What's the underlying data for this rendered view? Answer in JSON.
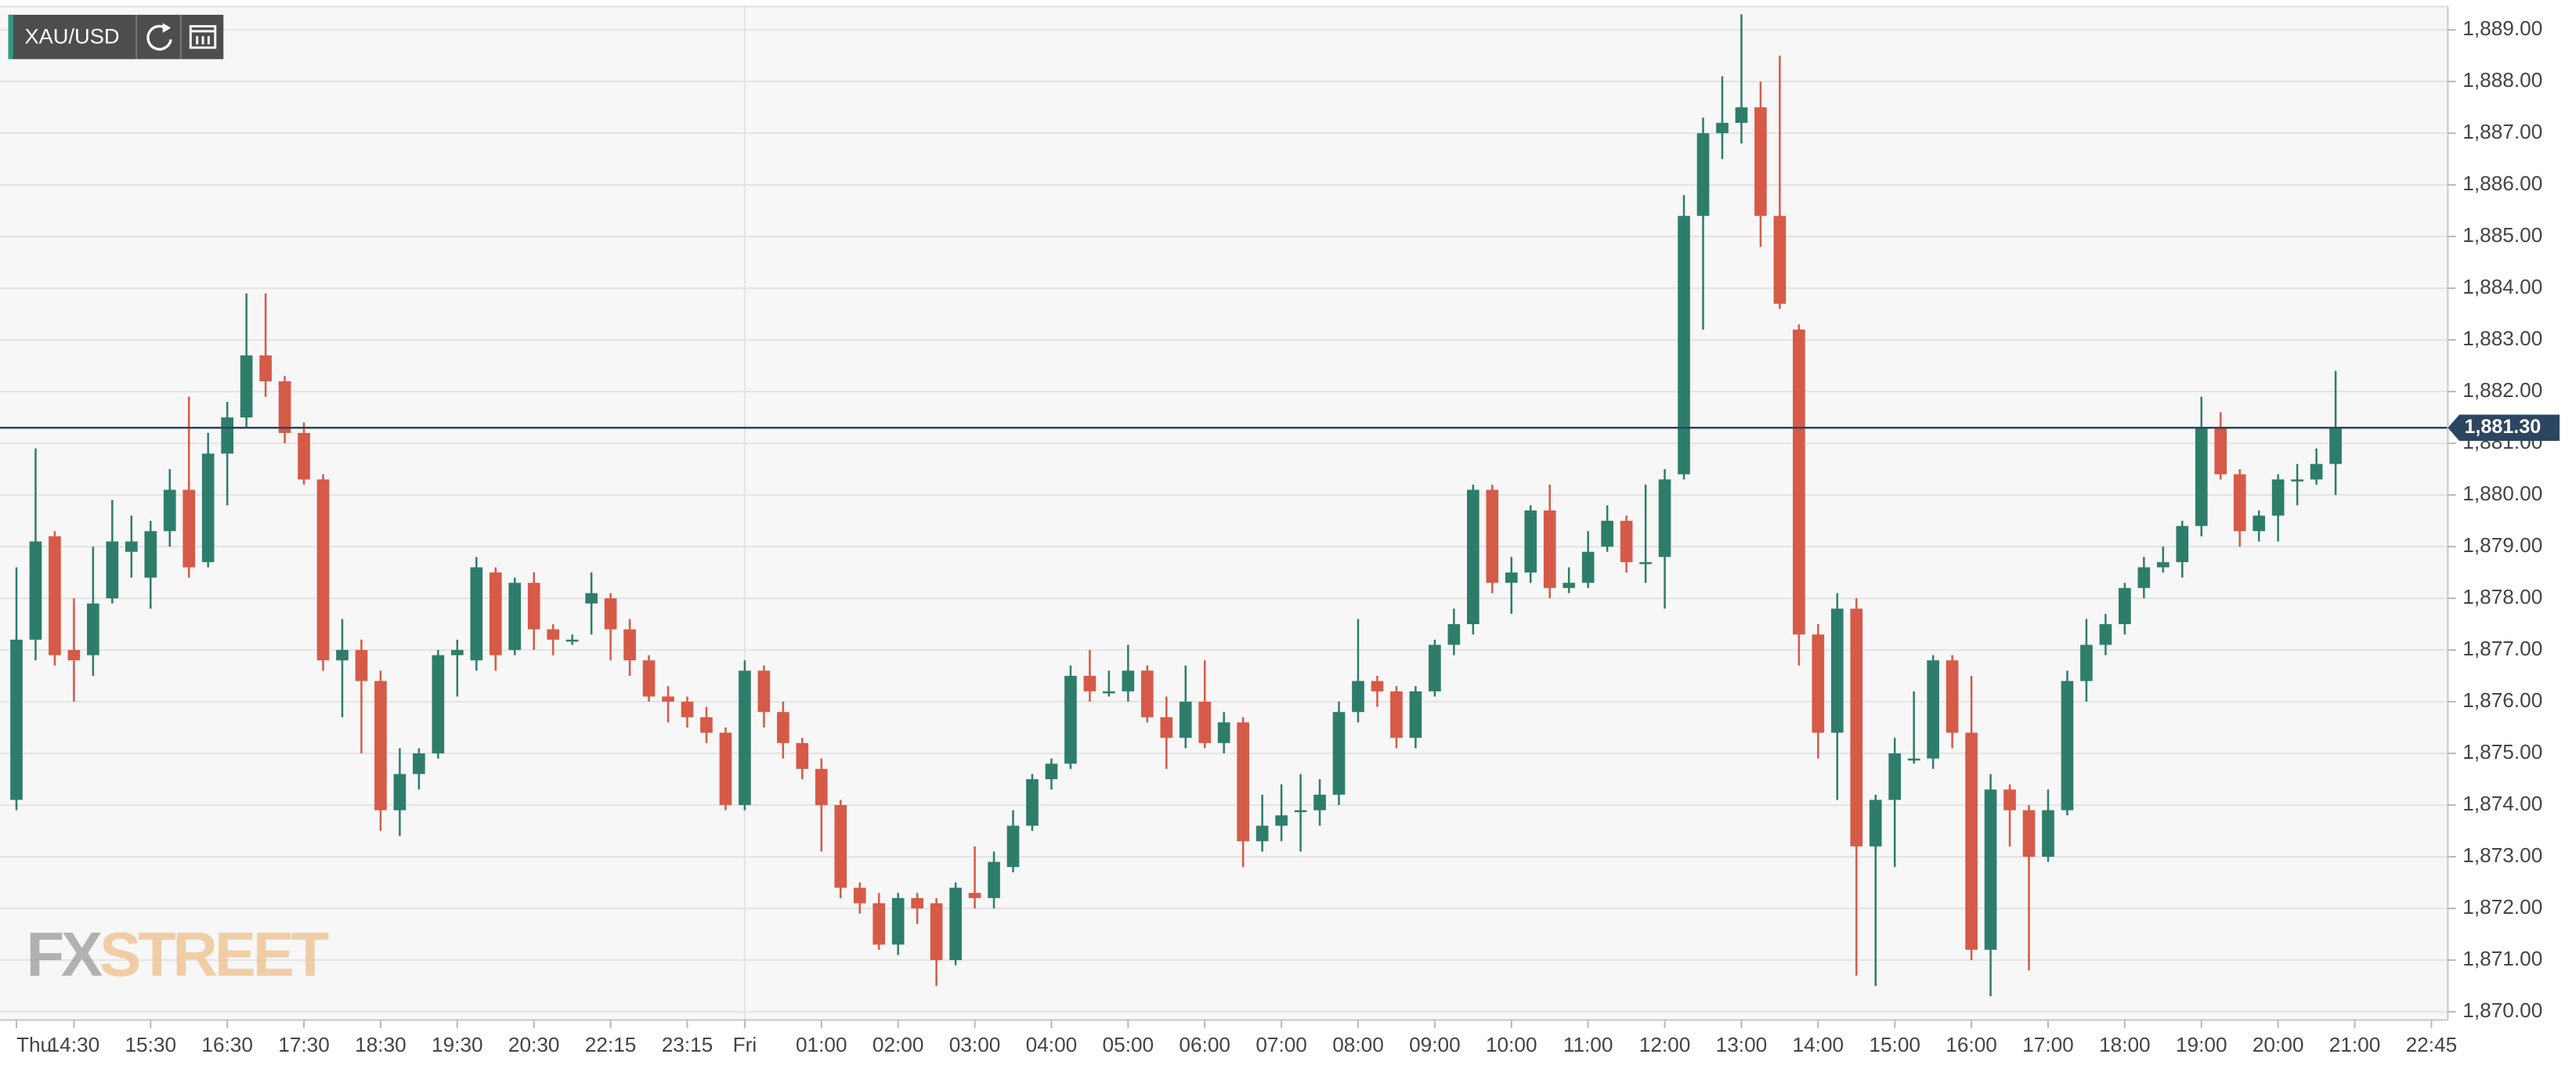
{
  "symbol": "XAU/USD",
  "logo": [
    "FX",
    "STREET"
  ],
  "chart_data": {
    "type": "candlestick",
    "up_color": "#2e7d6b",
    "down_color": "#d65a48",
    "grid": true,
    "price_line_color": "#2c4560",
    "last_price": {
      "value": 1881.3,
      "label": "1,881.30"
    },
    "ylim": [
      1869.84,
      1889.45
    ],
    "yticks": [
      {
        "value": 1870,
        "label": "1,870.00"
      },
      {
        "value": 1871,
        "label": "1,871.00"
      },
      {
        "value": 1872,
        "label": "1,872.00"
      },
      {
        "value": 1873,
        "label": "1,873.00"
      },
      {
        "value": 1874,
        "label": "1,874.00"
      },
      {
        "value": 1875,
        "label": "1,875.00"
      },
      {
        "value": 1876,
        "label": "1,876.00"
      },
      {
        "value": 1877,
        "label": "1,877.00"
      },
      {
        "value": 1878,
        "label": "1,878.00"
      },
      {
        "value": 1879,
        "label": "1,879.00"
      },
      {
        "value": 1880,
        "label": "1,880.00"
      },
      {
        "value": 1881,
        "label": "1,881.00"
      },
      {
        "value": 1882,
        "label": "1,882.00"
      },
      {
        "value": 1883,
        "label": "1,883.00"
      },
      {
        "value": 1884,
        "label": "1,884.00"
      },
      {
        "value": 1885,
        "label": "1,885.00"
      },
      {
        "value": 1886,
        "label": "1,886.00"
      },
      {
        "value": 1887,
        "label": "1,887.00"
      },
      {
        "value": 1888,
        "label": "1,888.00"
      },
      {
        "value": 1889,
        "label": "1,889.00"
      }
    ],
    "categories": [
      "Thu",
      null,
      null,
      "14:30",
      null,
      null,
      null,
      "15:30",
      null,
      null,
      null,
      "16:30",
      null,
      null,
      null,
      "17:30",
      null,
      null,
      null,
      "18:30",
      null,
      null,
      null,
      "19:30",
      null,
      null,
      null,
      "20:30",
      null,
      null,
      null,
      "22:15",
      null,
      null,
      null,
      "23:15",
      null,
      null,
      "Fri",
      null,
      null,
      null,
      "01:00",
      null,
      null,
      null,
      "02:00",
      null,
      null,
      null,
      "03:00",
      null,
      null,
      null,
      "04:00",
      null,
      null,
      null,
      "05:00",
      null,
      null,
      null,
      "06:00",
      null,
      null,
      null,
      "07:00",
      null,
      null,
      null,
      "08:00",
      null,
      null,
      null,
      "09:00",
      null,
      null,
      null,
      "10:00",
      null,
      null,
      null,
      "11:00",
      null,
      null,
      null,
      "12:00",
      null,
      null,
      null,
      "13:00",
      null,
      null,
      null,
      "14:00",
      null,
      null,
      null,
      "15:00",
      null,
      null,
      null,
      "16:00",
      null,
      null,
      null,
      "17:00",
      null,
      null,
      null,
      "18:00",
      null,
      null,
      null,
      "19:00",
      null,
      null,
      null,
      "20:00",
      null,
      null,
      null,
      "21:00",
      null,
      null,
      null,
      "22:45"
    ],
    "open": [
      1874.1,
      1877.2,
      1879.2,
      1877.0,
      1876.9,
      1878.0,
      1878.9,
      1878.4,
      1879.3,
      1880.1,
      1878.7,
      1880.8,
      1881.5,
      1882.7,
      1882.2,
      1881.2,
      1880.3,
      1876.8,
      1877.0,
      1876.4,
      1873.9,
      1874.6,
      1875.0,
      1876.9,
      1876.8,
      1878.5,
      1877.0,
      1878.3,
      1877.4,
      1877.2,
      1877.9,
      1878.0,
      1877.4,
      1876.8,
      1876.1,
      1876.0,
      1875.7,
      1875.4,
      1874.0,
      1876.6,
      1875.8,
      1875.2,
      1874.7,
      1874.0,
      1872.4,
      1872.1,
      1871.3,
      1872.2,
      1872.1,
      1871.0,
      1872.3,
      1872.2,
      1872.8,
      1873.6,
      1874.5,
      1874.8,
      1876.5,
      1876.2,
      1876.2,
      1876.6,
      1875.7,
      1875.3,
      1876.0,
      1875.2,
      1875.6,
      1873.3,
      1873.6,
      1873.9,
      1873.9,
      1874.2,
      1875.8,
      1876.4,
      1876.2,
      1875.3,
      1876.2,
      1877.1,
      1877.5,
      1880.1,
      1878.3,
      1878.5,
      1879.7,
      1878.2,
      1878.3,
      1879.0,
      1879.5,
      1878.7,
      1878.8,
      1880.4,
      1885.4,
      1887.0,
      1887.2,
      1887.5,
      1885.4,
      1883.2,
      1877.3,
      1875.4,
      1877.8,
      1873.2,
      1874.1,
      1874.9,
      1874.9,
      1876.8,
      1875.4,
      1871.2,
      1874.3,
      1873.9,
      1873.0,
      1873.9,
      1876.4,
      1877.1,
      1877.5,
      1878.2,
      1878.6,
      1878.7,
      1879.4,
      1881.3,
      1880.4,
      1879.3,
      1879.6,
      1880.3,
      1880.3,
      1880.6,
      null,
      null,
      null,
      null,
      null
    ],
    "high": [
      1878.6,
      1880.9,
      1879.3,
      1878.0,
      1879.0,
      1879.9,
      1879.6,
      1879.5,
      1880.5,
      1881.9,
      1881.2,
      1881.8,
      1883.9,
      1883.9,
      1882.3,
      1881.4,
      1880.4,
      1877.6,
      1877.2,
      1876.6,
      1875.1,
      1875.1,
      1877.0,
      1877.2,
      1878.8,
      1878.6,
      1878.4,
      1878.5,
      1877.5,
      1877.3,
      1878.5,
      1878.1,
      1877.6,
      1876.9,
      1876.3,
      1876.1,
      1875.9,
      1875.5,
      1876.8,
      1876.7,
      1876.0,
      1875.3,
      1874.9,
      1874.1,
      1872.5,
      1872.3,
      1872.3,
      1872.3,
      1872.2,
      1872.5,
      1873.2,
      1873.1,
      1873.9,
      1874.6,
      1874.9,
      1876.7,
      1877.0,
      1876.6,
      1877.1,
      1876.7,
      1876.1,
      1876.7,
      1876.8,
      1875.8,
      1875.7,
      1874.2,
      1874.4,
      1874.6,
      1874.5,
      1876.0,
      1877.6,
      1876.5,
      1876.3,
      1876.3,
      1877.2,
      1877.8,
      1880.2,
      1880.2,
      1878.8,
      1879.8,
      1880.2,
      1878.6,
      1879.3,
      1879.8,
      1879.6,
      1880.2,
      1880.5,
      1885.8,
      1887.3,
      1888.1,
      1889.3,
      1888.0,
      1888.5,
      1883.3,
      1877.5,
      1878.1,
      1878.0,
      1874.2,
      1875.3,
      1876.2,
      1876.9,
      1876.9,
      1876.5,
      1874.6,
      1874.4,
      1874.0,
      1874.3,
      1876.6,
      1877.6,
      1877.7,
      1878.3,
      1878.8,
      1879.0,
      1879.5,
      1881.9,
      1881.6,
      1880.5,
      1879.7,
      1880.4,
      1880.6,
      1880.9,
      1882.4,
      null,
      null,
      null,
      null,
      null
    ],
    "low": [
      1873.9,
      1876.8,
      1876.7,
      1876.0,
      1876.5,
      1877.9,
      1878.4,
      1877.8,
      1879.0,
      1878.4,
      1878.6,
      1879.8,
      1881.3,
      1881.9,
      1881.0,
      1880.2,
      1876.6,
      1875.7,
      1875.0,
      1873.5,
      1873.4,
      1874.3,
      1874.9,
      1876.1,
      1876.6,
      1876.6,
      1876.9,
      1877.0,
      1876.9,
      1877.1,
      1877.3,
      1876.8,
      1876.5,
      1876.0,
      1875.6,
      1875.5,
      1875.2,
      1873.9,
      1873.9,
      1875.5,
      1874.9,
      1874.5,
      1873.1,
      1872.2,
      1871.9,
      1871.2,
      1871.1,
      1871.7,
      1870.5,
      1870.9,
      1872.0,
      1872.0,
      1872.7,
      1873.5,
      1874.3,
      1874.7,
      1876.0,
      1876.1,
      1876.0,
      1875.6,
      1874.7,
      1875.1,
      1875.1,
      1875.0,
      1872.8,
      1873.1,
      1873.3,
      1873.1,
      1873.6,
      1874.0,
      1875.6,
      1875.9,
      1875.1,
      1875.1,
      1876.1,
      1876.9,
      1877.3,
      1878.1,
      1877.7,
      1878.3,
      1878.0,
      1878.1,
      1878.2,
      1878.9,
      1878.5,
      1878.3,
      1877.8,
      1880.3,
      1883.2,
      1886.5,
      1886.8,
      1884.8,
      1883.6,
      1876.7,
      1874.9,
      1874.1,
      1870.7,
      1870.5,
      1872.8,
      1874.8,
      1874.7,
      1875.1,
      1871.0,
      1870.3,
      1873.2,
      1870.8,
      1872.9,
      1873.8,
      1876.0,
      1876.9,
      1877.3,
      1878.0,
      1878.5,
      1878.4,
      1879.2,
      1880.3,
      1879.0,
      1879.1,
      1879.1,
      1879.8,
      1880.2,
      1880.0,
      null,
      null,
      null,
      null,
      null
    ],
    "close": [
      1877.2,
      1879.1,
      1876.9,
      1876.8,
      1877.9,
      1879.1,
      1879.1,
      1879.3,
      1880.1,
      1878.6,
      1880.8,
      1881.5,
      1882.7,
      1882.2,
      1881.2,
      1880.3,
      1876.8,
      1877.0,
      1876.4,
      1873.9,
      1874.6,
      1875.0,
      1876.9,
      1877.0,
      1878.6,
      1876.9,
      1878.3,
      1877.4,
      1877.2,
      1877.2,
      1878.1,
      1877.4,
      1876.8,
      1876.1,
      1876.0,
      1875.7,
      1875.4,
      1874.0,
      1876.6,
      1875.8,
      1875.2,
      1874.7,
      1874.0,
      1872.4,
      1872.1,
      1871.3,
      1872.2,
      1872.0,
      1871.0,
      1872.4,
      1872.2,
      1872.9,
      1873.6,
      1874.5,
      1874.8,
      1876.5,
      1876.2,
      1876.2,
      1876.6,
      1875.7,
      1875.3,
      1876.0,
      1875.2,
      1875.6,
      1873.3,
      1873.6,
      1873.8,
      1873.9,
      1874.2,
      1875.8,
      1876.4,
      1876.2,
      1875.3,
      1876.2,
      1877.1,
      1877.5,
      1880.1,
      1878.3,
      1878.5,
      1879.7,
      1878.2,
      1878.3,
      1878.9,
      1879.5,
      1878.7,
      1878.7,
      1880.3,
      1885.4,
      1887.0,
      1887.2,
      1887.5,
      1885.4,
      1883.7,
      1877.3,
      1875.4,
      1877.8,
      1873.2,
      1874.1,
      1875.0,
      1874.9,
      1876.8,
      1875.4,
      1871.2,
      1874.3,
      1873.9,
      1873.0,
      1873.9,
      1876.4,
      1877.1,
      1877.5,
      1878.2,
      1878.6,
      1878.7,
      1879.4,
      1881.3,
      1880.4,
      1879.3,
      1879.6,
      1880.3,
      1880.3,
      1880.6,
      1881.3,
      null,
      null,
      null,
      null,
      null
    ]
  }
}
